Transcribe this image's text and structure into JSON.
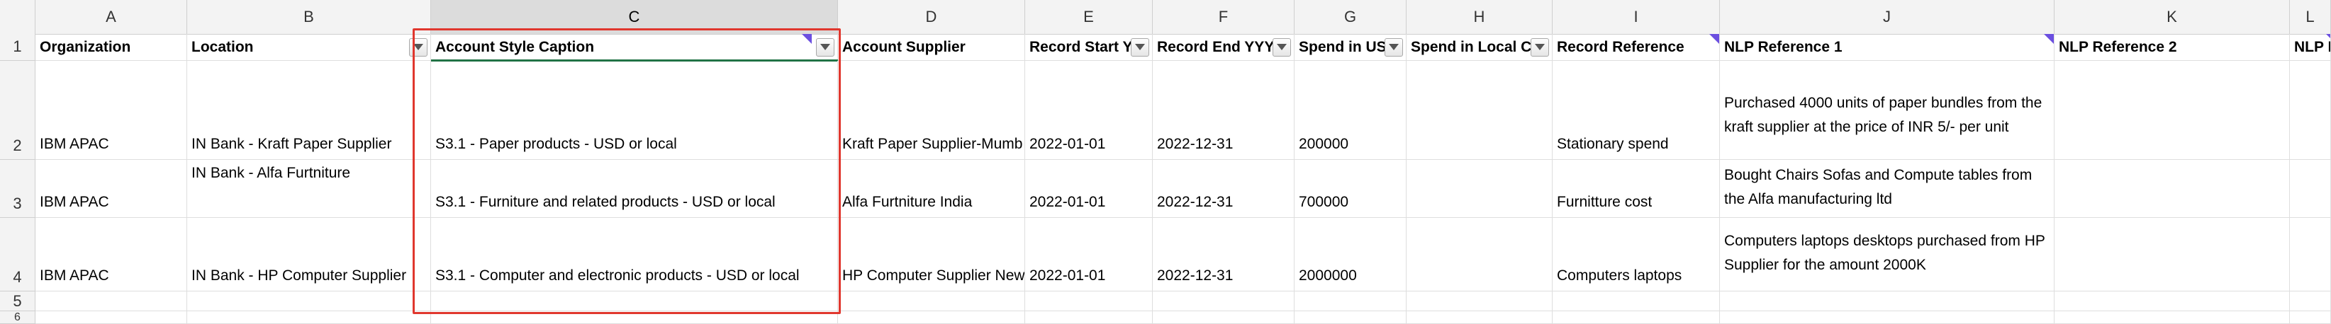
{
  "columns": [
    "A",
    "B",
    "C",
    "D",
    "E",
    "F",
    "G",
    "H",
    "I",
    "J",
    "K",
    "L"
  ],
  "rows": [
    "1",
    "2",
    "3",
    "4",
    "5",
    "6"
  ],
  "headers": {
    "organization": "Organization",
    "location": "Location",
    "account_style_caption": "Account Style Caption",
    "account_supplier": "Account Supplier",
    "record_start": "Record Start Y",
    "record_end": "Record End YYYY",
    "spend_usd": "Spend in US",
    "spend_local": "Spend in Local Cu",
    "record_reference": "Record Reference",
    "nlp_ref_1": "NLP Reference 1",
    "nlp_ref_2": "NLP Reference 2",
    "nlp_ref_3": "NLP R"
  },
  "data_rows": [
    {
      "organization": "IBM APAC",
      "location": "IN Bank - Kraft Paper Supplier",
      "account_style_caption": "S3.1 - Paper products - USD or local",
      "account_supplier": "Kraft Paper Supplier-Mumb",
      "record_start": "2022-01-01",
      "record_end": "2022-12-31",
      "spend_usd": "200000",
      "spend_local": "",
      "record_reference": "Stationary spend",
      "nlp_ref_1": "Purchased 4000 units of paper bundles from the kraft supplier at the price of  INR 5/- per unit",
      "nlp_ref_2": ""
    },
    {
      "organization": "IBM APAC",
      "location": "IN Bank - Alfa Furtniture",
      "account_style_caption": "S3.1 - Furniture and related products - USD or local",
      "account_supplier": "Alfa Furtniture India",
      "record_start": "2022-01-01",
      "record_end": "2022-12-31",
      "spend_usd": "700000",
      "spend_local": "",
      "record_reference": "Furnitture cost",
      "nlp_ref_1": "Bought Chairs Sofas and Compute tables from the Alfa manufacturing ltd",
      "nlp_ref_2": ""
    },
    {
      "organization": "IBM APAC",
      "location": "IN Bank - HP Computer Supplier",
      "account_style_caption": "S3.1 - Computer and electronic products - USD or local",
      "account_supplier": "HP Computer Supplier New",
      "record_start": "2022-01-01",
      "record_end": "2022-12-31",
      "spend_usd": "2000000",
      "spend_local": "",
      "record_reference": "Computers laptops",
      "nlp_ref_1": "Computers laptops desktops purchased from HP Supplier for the amount 2000K",
      "nlp_ref_2": ""
    }
  ],
  "icons": {
    "filter": "filter-dropdown-icon",
    "comment": "comment-indicator-icon"
  },
  "colors": {
    "highlight": "#e0372e",
    "selection": "#217346",
    "comment": "#6b4fe0"
  }
}
